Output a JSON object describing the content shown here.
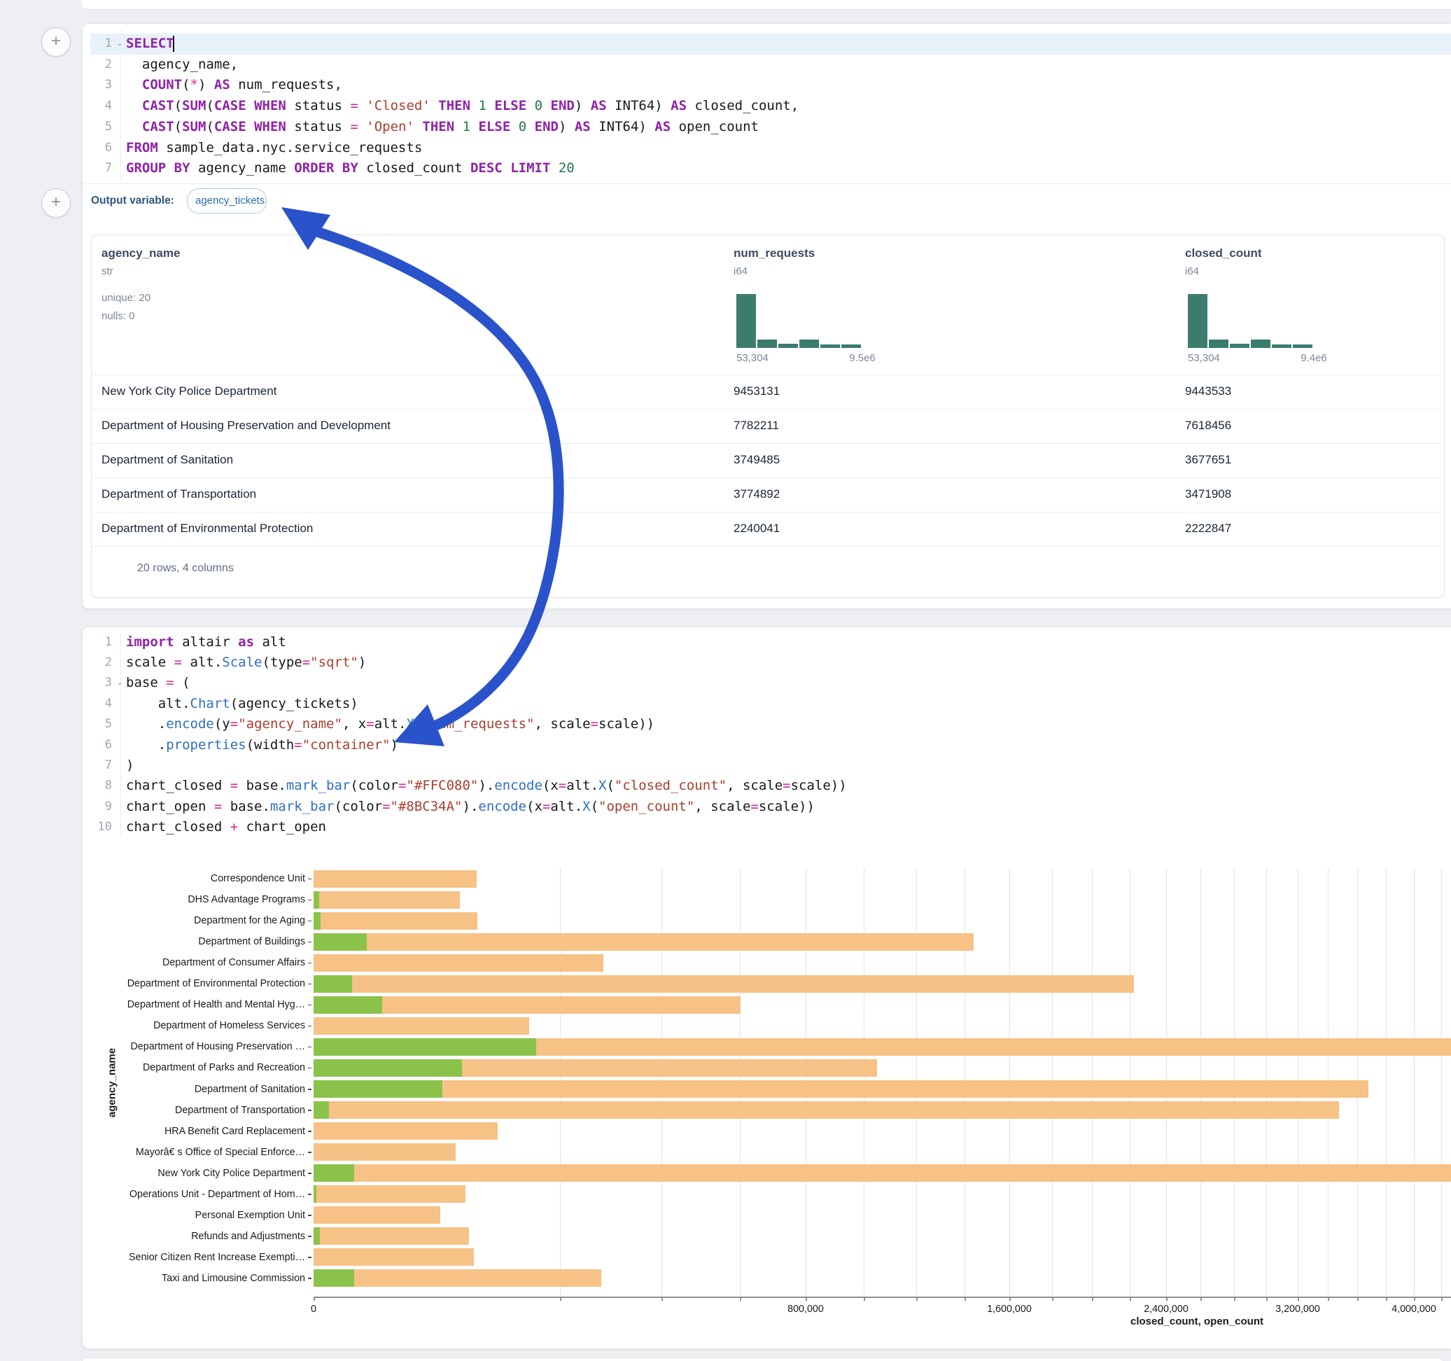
{
  "colors": {
    "arrow_blue": "#2a52cb",
    "histogram_teal": "#3c7c6d",
    "bar_closed_orange": "#f6c286",
    "bar_open_green": "#8bc34a",
    "active_line_blue": "#e9f1fb"
  },
  "sql_cell": {
    "lines": [
      {
        "n": "1",
        "fold": true,
        "active": true,
        "caret_after_ch": 7,
        "tokens": [
          [
            "kw",
            "SELECT"
          ],
          [
            "pl",
            " "
          ]
        ]
      },
      {
        "n": "2",
        "tokens": [
          [
            "pl",
            "  agency_name,"
          ]
        ]
      },
      {
        "n": "3",
        "tokens": [
          [
            "pl",
            "  "
          ],
          [
            "kw",
            "COUNT"
          ],
          [
            "pl",
            "("
          ],
          [
            "op",
            "*"
          ],
          [
            "pl",
            ") "
          ],
          [
            "kw",
            "AS"
          ],
          [
            "pl",
            " num_requests,"
          ]
        ]
      },
      {
        "n": "4",
        "tokens": [
          [
            "pl",
            "  "
          ],
          [
            "kw",
            "CAST"
          ],
          [
            "pl",
            "("
          ],
          [
            "kw",
            "SUM"
          ],
          [
            "pl",
            "("
          ],
          [
            "kw",
            "CASE"
          ],
          [
            "pl",
            " "
          ],
          [
            "kw",
            "WHEN"
          ],
          [
            "pl",
            " status "
          ],
          [
            "op",
            "="
          ],
          [
            "pl",
            " "
          ],
          [
            "str",
            "'Closed'"
          ],
          [
            "pl",
            " "
          ],
          [
            "kw",
            "THEN"
          ],
          [
            "pl",
            " "
          ],
          [
            "num",
            "1"
          ],
          [
            "pl",
            " "
          ],
          [
            "kw",
            "ELSE"
          ],
          [
            "pl",
            " "
          ],
          [
            "num",
            "0"
          ],
          [
            "pl",
            " "
          ],
          [
            "kw",
            "END"
          ],
          [
            "pl",
            ") "
          ],
          [
            "kw",
            "AS"
          ],
          [
            "pl",
            " INT64) "
          ],
          [
            "kw",
            "AS"
          ],
          [
            "pl",
            " closed_count,"
          ]
        ]
      },
      {
        "n": "5",
        "tokens": [
          [
            "pl",
            "  "
          ],
          [
            "kw",
            "CAST"
          ],
          [
            "pl",
            "("
          ],
          [
            "kw",
            "SUM"
          ],
          [
            "pl",
            "("
          ],
          [
            "kw",
            "CASE"
          ],
          [
            "pl",
            " "
          ],
          [
            "kw",
            "WHEN"
          ],
          [
            "pl",
            " status "
          ],
          [
            "op",
            "="
          ],
          [
            "pl",
            " "
          ],
          [
            "str",
            "'Open'"
          ],
          [
            "pl",
            " "
          ],
          [
            "kw",
            "THEN"
          ],
          [
            "pl",
            " "
          ],
          [
            "num",
            "1"
          ],
          [
            "pl",
            " "
          ],
          [
            "kw",
            "ELSE"
          ],
          [
            "pl",
            " "
          ],
          [
            "num",
            "0"
          ],
          [
            "pl",
            " "
          ],
          [
            "kw",
            "END"
          ],
          [
            "pl",
            ") "
          ],
          [
            "kw",
            "AS"
          ],
          [
            "pl",
            " INT64) "
          ],
          [
            "kw",
            "AS"
          ],
          [
            "pl",
            " open_count"
          ]
        ]
      },
      {
        "n": "6",
        "tokens": [
          [
            "kw",
            "FROM"
          ],
          [
            "pl",
            " sample_data.nyc.service_requests"
          ]
        ]
      },
      {
        "n": "7",
        "tokens": [
          [
            "kw",
            "GROUP"
          ],
          [
            "pl",
            " "
          ],
          [
            "kw",
            "BY"
          ],
          [
            "pl",
            " agency_name "
          ],
          [
            "kw",
            "ORDER"
          ],
          [
            "pl",
            " "
          ],
          [
            "kw",
            "BY"
          ],
          [
            "pl",
            " closed_count "
          ],
          [
            "kw",
            "DESC"
          ],
          [
            "pl",
            " "
          ],
          [
            "kw",
            "LIMIT"
          ],
          [
            "pl",
            " "
          ],
          [
            "num",
            "20"
          ]
        ]
      }
    ]
  },
  "output_variable": {
    "label": "Output variable:",
    "value": "agency_tickets"
  },
  "table": {
    "columns": [
      {
        "name": "agency_name",
        "type": "str",
        "stats": [
          "unique: 20",
          "nulls: 0"
        ]
      },
      {
        "name": "num_requests",
        "type": "i64",
        "hist": {
          "bars": [
            1,
            0.16,
            0.08,
            0.15,
            0.07,
            0.07
          ],
          "min_label": "53,304",
          "max_label": "9.5e6"
        }
      },
      {
        "name": "closed_count",
        "type": "i64",
        "hist": {
          "bars": [
            1,
            0.16,
            0.08,
            0.15,
            0.07,
            0.07
          ],
          "min_label": "53,304",
          "max_label": "9.4e6"
        }
      }
    ],
    "rows": [
      {
        "agency_name": "New York City Police Department",
        "num_requests": "9453131",
        "closed_count": "9443533"
      },
      {
        "agency_name": "Department of Housing Preservation and Development",
        "num_requests": "7782211",
        "closed_count": "7618456"
      },
      {
        "agency_name": "Department of Sanitation",
        "num_requests": "3749485",
        "closed_count": "3677651"
      },
      {
        "agency_name": "Department of Transportation",
        "num_requests": "3774892",
        "closed_count": "3471908"
      },
      {
        "agency_name": "Department of Environmental Protection",
        "num_requests": "2240041",
        "closed_count": "2222847"
      }
    ],
    "footer": "20 rows, 4 columns"
  },
  "python_cell": {
    "lines": [
      {
        "n": "1",
        "tokens": [
          [
            "kw",
            "import"
          ],
          [
            "pl",
            " altair "
          ],
          [
            "kw",
            "as"
          ],
          [
            "pl",
            " alt"
          ]
        ]
      },
      {
        "n": "2",
        "tokens": [
          [
            "pl",
            "scale "
          ],
          [
            "op",
            "="
          ],
          [
            "pl",
            " alt."
          ],
          [
            "fn",
            "Scale"
          ],
          [
            "pl",
            "(type"
          ],
          [
            "op",
            "="
          ],
          [
            "str",
            "\"sqrt\""
          ],
          [
            "pl",
            ")"
          ]
        ]
      },
      {
        "n": "3",
        "fold": true,
        "tokens": [
          [
            "pl",
            "base "
          ],
          [
            "op",
            "="
          ],
          [
            "pl",
            " ("
          ]
        ]
      },
      {
        "n": "4",
        "tokens": [
          [
            "pl",
            "    alt."
          ],
          [
            "fn",
            "Chart"
          ],
          [
            "pl",
            "(agency_tickets)"
          ]
        ]
      },
      {
        "n": "5",
        "tokens": [
          [
            "pl",
            "    ."
          ],
          [
            "fn",
            "encode"
          ],
          [
            "pl",
            "(y"
          ],
          [
            "op",
            "="
          ],
          [
            "str",
            "\"agency_name\""
          ],
          [
            "pl",
            ", x"
          ],
          [
            "op",
            "="
          ],
          [
            "pl",
            "alt."
          ],
          [
            "fn",
            "X"
          ],
          [
            "pl",
            "("
          ],
          [
            "str",
            "\"num_requests\""
          ],
          [
            "pl",
            ", scale"
          ],
          [
            "op",
            "="
          ],
          [
            "pl",
            "scale))"
          ]
        ]
      },
      {
        "n": "6",
        "tokens": [
          [
            "pl",
            "    ."
          ],
          [
            "fn",
            "properties"
          ],
          [
            "pl",
            "(width"
          ],
          [
            "op",
            "="
          ],
          [
            "str",
            "\"container\""
          ],
          [
            "pl",
            ")"
          ]
        ]
      },
      {
        "n": "7",
        "tokens": [
          [
            "pl",
            ")"
          ]
        ]
      },
      {
        "n": "8",
        "tokens": [
          [
            "pl",
            "chart_closed "
          ],
          [
            "op",
            "="
          ],
          [
            "pl",
            " base."
          ],
          [
            "fn",
            "mark_bar"
          ],
          [
            "pl",
            "(color"
          ],
          [
            "op",
            "="
          ],
          [
            "str",
            "\"#FFC080\""
          ],
          [
            "pl",
            ")."
          ],
          [
            "fn",
            "encode"
          ],
          [
            "pl",
            "(x"
          ],
          [
            "op",
            "="
          ],
          [
            "pl",
            "alt."
          ],
          [
            "fn",
            "X"
          ],
          [
            "pl",
            "("
          ],
          [
            "str",
            "\"closed_count\""
          ],
          [
            "pl",
            ", scale"
          ],
          [
            "op",
            "="
          ],
          [
            "pl",
            "scale))"
          ]
        ]
      },
      {
        "n": "9",
        "tokens": [
          [
            "pl",
            "chart_open "
          ],
          [
            "op",
            "="
          ],
          [
            "pl",
            " base."
          ],
          [
            "fn",
            "mark_bar"
          ],
          [
            "pl",
            "(color"
          ],
          [
            "op",
            "="
          ],
          [
            "str",
            "\"#8BC34A\""
          ],
          [
            "pl",
            ")."
          ],
          [
            "fn",
            "encode"
          ],
          [
            "pl",
            "(x"
          ],
          [
            "op",
            "="
          ],
          [
            "pl",
            "alt."
          ],
          [
            "fn",
            "X"
          ],
          [
            "pl",
            "("
          ],
          [
            "str",
            "\"open_count\""
          ],
          [
            "pl",
            ", scale"
          ],
          [
            "op",
            "="
          ],
          [
            "pl",
            "scale))"
          ]
        ]
      },
      {
        "n": "10",
        "tokens": [
          [
            "pl",
            "chart_closed "
          ],
          [
            "op",
            "+"
          ],
          [
            "pl",
            " chart_open"
          ]
        ]
      }
    ]
  },
  "chart_data": {
    "type": "bar",
    "orientation": "horizontal",
    "x_scale": "sqrt",
    "title": "",
    "xlabel": "closed_count, open_count",
    "ylabel": "agency_name",
    "x_ticks": [
      0,
      800000,
      1600000,
      2400000,
      3200000,
      4000000
    ],
    "x_tick_labels": [
      "0",
      "800,000",
      "1,600,000",
      "2,400,000",
      "3,200,000",
      "4,000,000"
    ],
    "gridline_step": 200000,
    "categories": [
      "Correspondence Unit",
      "DHS Advantage Programs",
      "Department for the Aging",
      "Department of Buildings",
      "Department of Consumer Affairs",
      "Department of Environmental Protection",
      "Department of Health and Mental Hyg…",
      "Department of Homeless Services",
      "Department of Housing Preservation …",
      "Department of Parks and Recreation",
      "Department of Sanitation",
      "Department of Transportation",
      "HRA Benefit Card Replacement",
      "Mayorâ€ s Office of Special Enforce…",
      "New York City Police Department",
      "Operations Unit - Department of Hom…",
      "Personal Exemption Unit",
      "Refunds and Adjustments",
      "Senior Citizen Rent Increase Exempti…",
      "Taxi and Limousine Commission"
    ],
    "series": [
      {
        "name": "closed_count",
        "color": "#f6c286",
        "values": [
          88000,
          71000,
          88500,
          1440000,
          277000,
          2222847,
          602000,
          154000,
          7618456,
          1050000,
          3677651,
          3471908,
          112000,
          67000,
          9443533,
          76000,
          53304,
          80000,
          85000,
          273000
        ]
      },
      {
        "name": "open_count",
        "color": "#8bc34a",
        "values": [
          0,
          100,
          150,
          9400,
          0,
          4900,
          15600,
          0,
          163755,
          72800,
          55000,
          800,
          0,
          0,
          5500,
          30,
          0,
          120,
          0,
          5400
        ]
      }
    ]
  }
}
